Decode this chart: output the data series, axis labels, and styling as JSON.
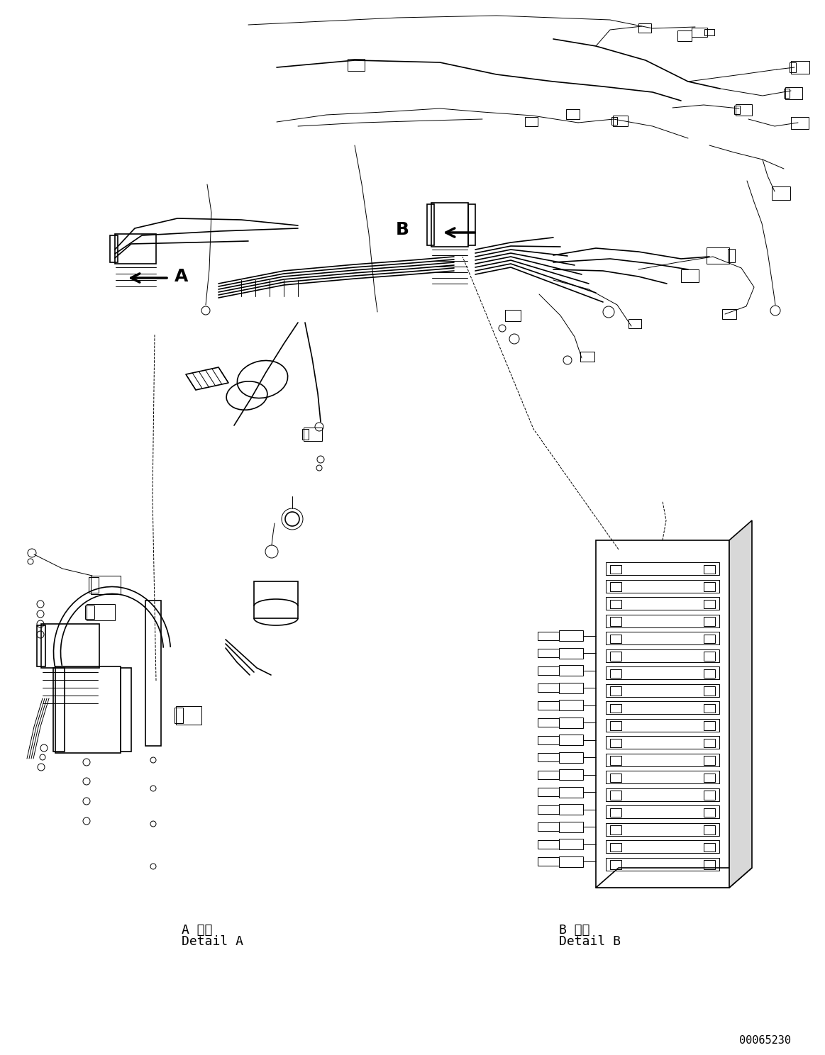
{
  "bg_color": "#ffffff",
  "line_color": "#000000",
  "lw": 1.2,
  "tlw": 0.7,
  "fig_width": 11.63,
  "fig_height": 14.88,
  "label_A": "A",
  "label_B": "B",
  "detail_A_jp": "A 詳細",
  "detail_A_en": "Detail A",
  "detail_B_jp": "B 詳細",
  "detail_B_en": "Detail B",
  "part_number": "00065230",
  "fs_label": 18,
  "fs_detail": 13,
  "fs_part": 11
}
